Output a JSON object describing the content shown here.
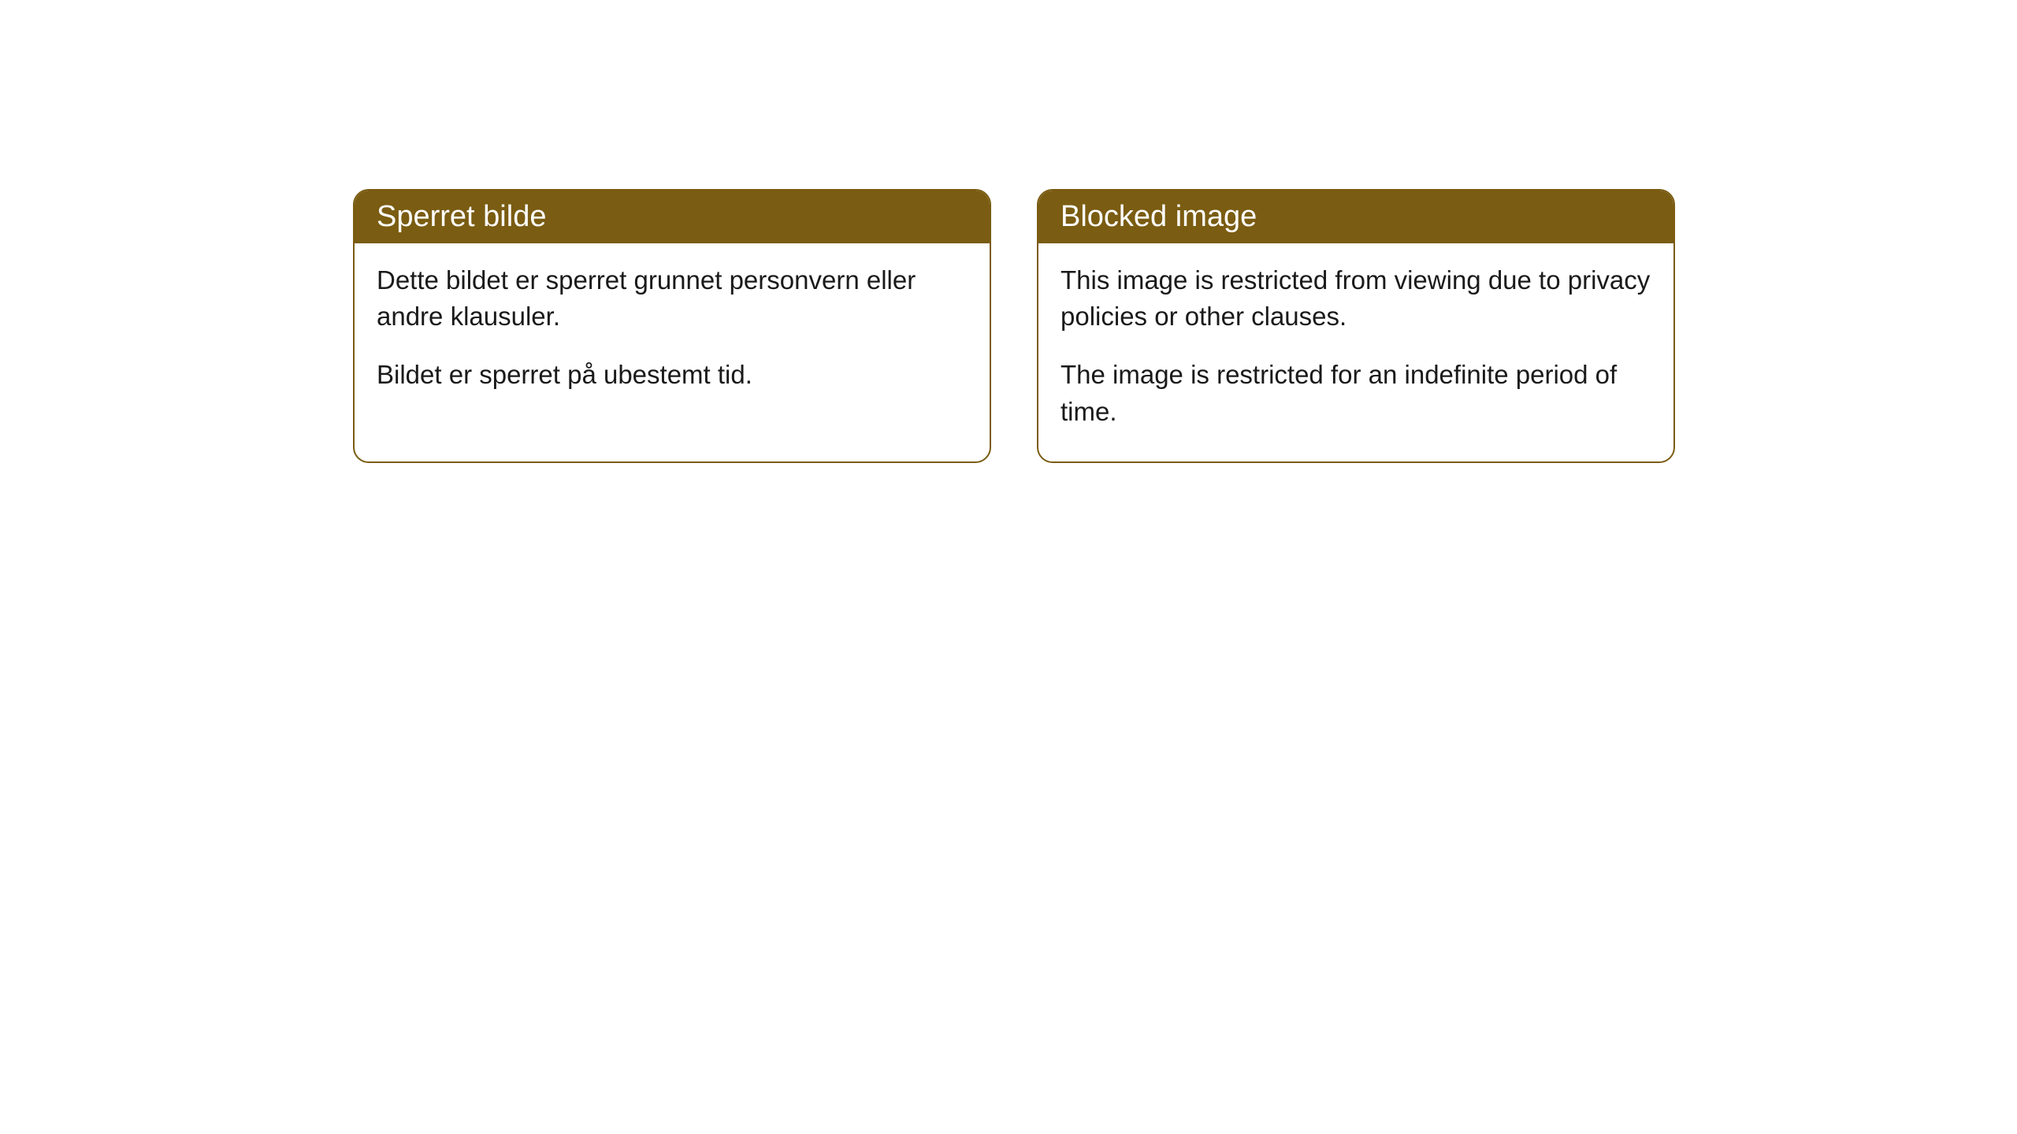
{
  "cards": [
    {
      "title": "Sperret bilde",
      "paragraph1": "Dette bildet er sperret grunnet personvern eller andre klausuler.",
      "paragraph2": "Bildet er sperret på ubestemt tid."
    },
    {
      "title": "Blocked image",
      "paragraph1": "This image is restricted from viewing due to privacy policies or other clauses.",
      "paragraph2": "The image is restricted for an indefinite period of time."
    }
  ],
  "styling": {
    "header_bg_color": "#7a5c12",
    "header_text_color": "#ffffff",
    "border_color": "#7a5c12",
    "body_text_color": "#1a1a1a",
    "background_color": "#ffffff",
    "border_radius": 20,
    "header_fontsize": 38,
    "body_fontsize": 33
  }
}
